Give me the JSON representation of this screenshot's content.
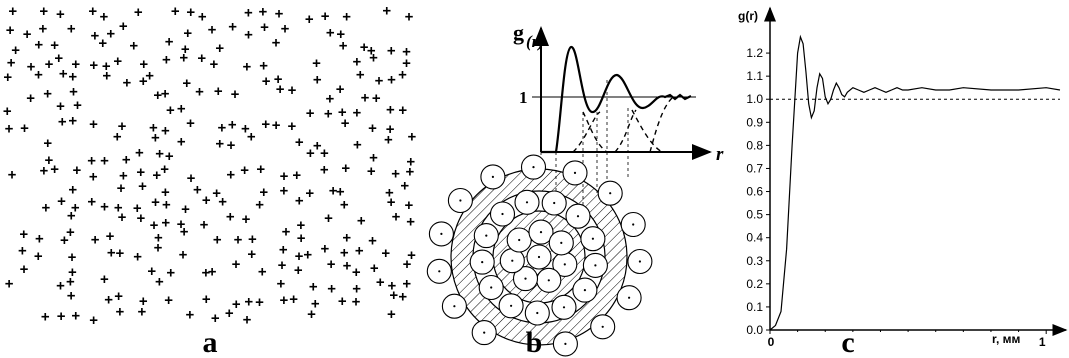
{
  "panels": {
    "a": {
      "label": "a"
    },
    "b": {
      "label": "b",
      "axis_y_label_g": "g",
      "axis_y_label_r": "(r)",
      "axis_x_label": "r",
      "tick_1": "1"
    },
    "c": {
      "label": "c",
      "ylabel": "g(r)",
      "xlabel": "r, мм",
      "yticks": [
        "0.0",
        "0.1",
        "0.2",
        "0.3",
        "0.4",
        "0.5",
        "0.6",
        "0.7",
        "0.8",
        "0.9",
        "1.0",
        "1.1",
        "1.2"
      ],
      "xticks": [
        "0",
        "1"
      ]
    }
  },
  "chart_data": {
    "type": "line",
    "title": "",
    "xlabel": "r, мм",
    "ylabel": "g(r)",
    "ylim": [
      0,
      1.3
    ],
    "xlim": [
      0,
      1.05
    ],
    "reference_line": 1.0,
    "series": [
      {
        "x": [
          0,
          0.02,
          0.04,
          0.06,
          0.08,
          0.1,
          0.11,
          0.12,
          0.13,
          0.14,
          0.15,
          0.16,
          0.17,
          0.18,
          0.19,
          0.2,
          0.21,
          0.22,
          0.23,
          0.24,
          0.25,
          0.26,
          0.27,
          0.28,
          0.3,
          0.32,
          0.34,
          0.36,
          0.38,
          0.4,
          0.42,
          0.44,
          0.46,
          0.48,
          0.5,
          0.55,
          0.6,
          0.65,
          0.7,
          0.8,
          0.9,
          1.0,
          1.05
        ],
        "y": [
          0,
          0.02,
          0.08,
          0.35,
          0.8,
          1.2,
          1.27,
          1.24,
          1.12,
          0.98,
          0.92,
          0.95,
          1.05,
          1.11,
          1.09,
          1.01,
          0.98,
          1.0,
          1.04,
          1.07,
          1.05,
          1.02,
          1.01,
          1.03,
          1.05,
          1.04,
          1.03,
          1.04,
          1.05,
          1.04,
          1.03,
          1.04,
          1.05,
          1.04,
          1.04,
          1.05,
          1.04,
          1.04,
          1.05,
          1.04,
          1.04,
          1.05,
          1.04
        ]
      }
    ]
  },
  "colors": {
    "ink": "#000000",
    "background": "#ffffff"
  }
}
